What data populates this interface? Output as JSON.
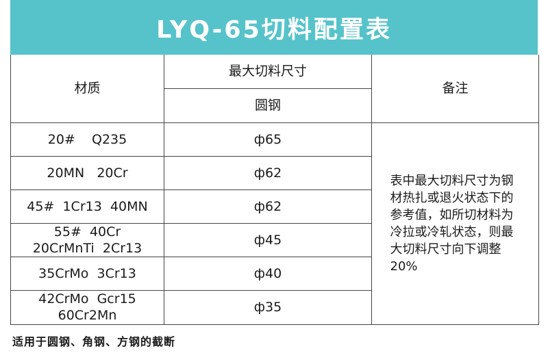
{
  "title": "LYQ-65切料配置表",
  "headers": {
    "material": "材质",
    "max_size": "最大切料尺寸",
    "round_steel": "圆钢",
    "note": "备注"
  },
  "rows": [
    {
      "material_line1": "20#    Q235",
      "material_line2": "",
      "size": "ф65"
    },
    {
      "material_line1": "20MN   20Cr",
      "material_line2": "",
      "size": "ф62"
    },
    {
      "material_line1": "45#  1Cr13  40MN",
      "material_line2": "",
      "size": "ф62"
    },
    {
      "material_line1": "55#  40Cr",
      "material_line2": "20CrMnTi  2Cr13",
      "size": "ф45"
    },
    {
      "material_line1": "35CrMo  3Cr13",
      "material_line2": "",
      "size": "ф40"
    },
    {
      "material_line1": "42CrMo  Gcr15",
      "material_line2": "60Cr2Mn",
      "size": "ф35"
    }
  ],
  "note_text": "表中最大切料尺寸为钢材热扎或退火状态下的参考值，如所切材料为冷拉或冷轧状态，则最大切料尺寸向下调整20%",
  "footer": "适用于圆钢、角钢、方钢的截断"
}
